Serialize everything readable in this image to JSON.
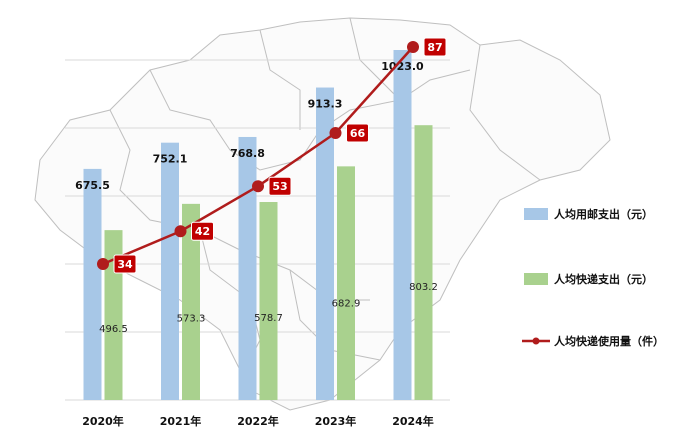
{
  "chart_data": {
    "type": "bar",
    "title": "",
    "xlabel": "",
    "ylabel": "",
    "categories": [
      "2020年",
      "2021年",
      "2022年",
      "2023年",
      "2024年"
    ],
    "series": [
      {
        "name": "人均用邮支出（元）",
        "kind": "bar",
        "color": "#a7c7e7",
        "values": [
          675.5,
          752.1,
          768.8,
          913.3,
          1023.0
        ],
        "labels": [
          "675.5",
          "752.1",
          "768.8",
          "913.3",
          "1023.0"
        ]
      },
      {
        "name": "人均快递支出（元）",
        "kind": "bar",
        "color": "#a9d18e",
        "values": [
          496.5,
          573.3,
          578.7,
          682.9,
          803.2
        ],
        "labels": [
          "496.5",
          "573.3",
          "578.7",
          "682.9",
          "803.2"
        ]
      },
      {
        "name": "人均快递使用量（件）",
        "kind": "line",
        "color": "#b01c1c",
        "values": [
          34,
          42,
          53,
          66,
          87
        ],
        "labels": [
          "34",
          "42",
          "53",
          "66",
          "87"
        ]
      }
    ],
    "bar_axis_range": [
      0,
      1100
    ],
    "line_axis_range": [
      0,
      100
    ],
    "grid": true,
    "legend_position": "right",
    "background": "faint map outline"
  }
}
